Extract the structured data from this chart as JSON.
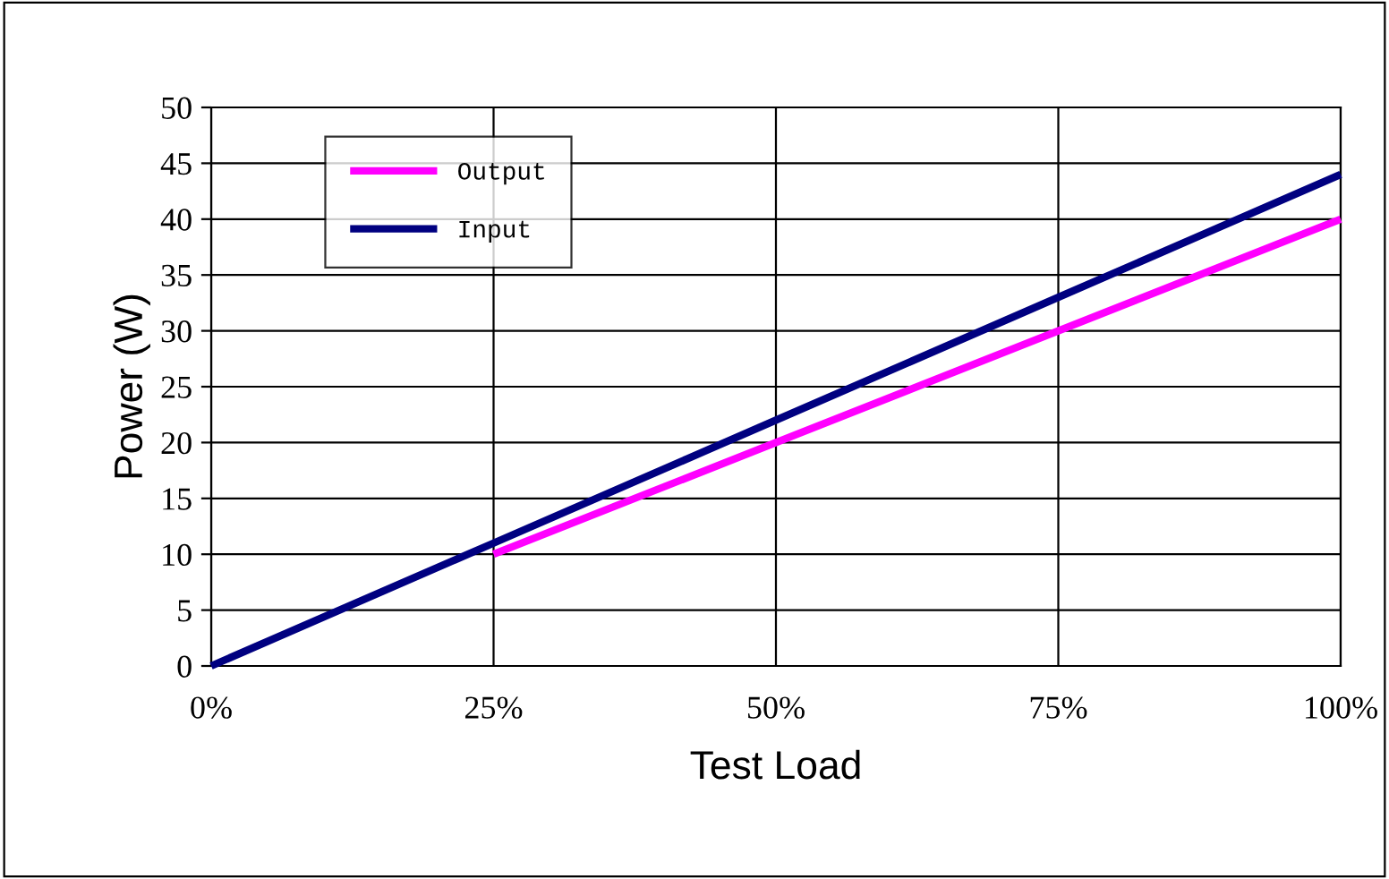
{
  "chart_data": {
    "type": "line",
    "xlabel": "Test Load",
    "ylabel": "Power (W)",
    "series": [
      {
        "name": "Output",
        "color": "#ff00ff",
        "x": [
          25,
          50,
          75,
          100
        ],
        "values": [
          10,
          20,
          30,
          40
        ]
      },
      {
        "name": "Input",
        "color": "#000080",
        "x": [
          0,
          25,
          50,
          75,
          100
        ],
        "values": [
          0,
          11,
          22,
          33,
          44
        ]
      }
    ],
    "xlim": [
      0,
      100
    ],
    "xticks": [
      {
        "value": 0,
        "label": "0%"
      },
      {
        "value": 25,
        "label": "25%"
      },
      {
        "value": 50,
        "label": "50%"
      },
      {
        "value": 75,
        "label": "75%"
      },
      {
        "value": 100,
        "label": "100%"
      }
    ],
    "ylim": [
      0,
      50
    ],
    "yticks": [
      0,
      5,
      10,
      15,
      20,
      25,
      30,
      35,
      40,
      45,
      50
    ],
    "grid": true,
    "legend": "top left",
    "marker": "none",
    "line_style": "solid"
  }
}
